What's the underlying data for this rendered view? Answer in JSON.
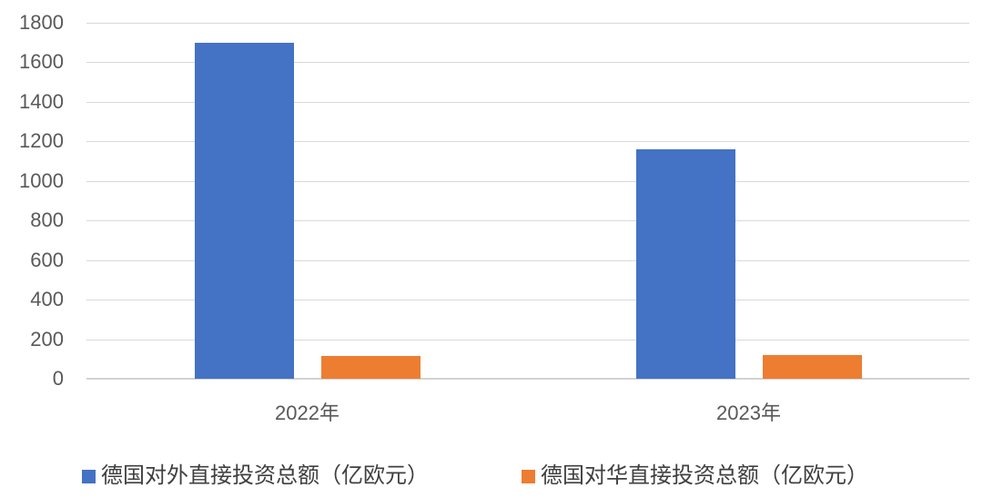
{
  "chart_data": {
    "type": "bar",
    "title": "",
    "xlabel": "",
    "ylabel": "",
    "categories": [
      "2022年",
      "2023年"
    ],
    "series": [
      {
        "name": "德国对外直接投资总额（亿欧元）",
        "color": "#4472C4",
        "values": [
          1700,
          1160
        ]
      },
      {
        "name": "德国对华直接投资总额（亿欧元）",
        "color": "#ED7D31",
        "values": [
          115,
          119
        ]
      }
    ],
    "ylim": [
      0,
      1800
    ],
    "ytick_step": 200,
    "ytick_labels": [
      "0",
      "200",
      "400",
      "600",
      "800",
      "1000",
      "1200",
      "1400",
      "1600",
      "1800"
    ],
    "grid": true,
    "gridline_color": "#d9d9d9",
    "axis_text_color": "#595959",
    "legend_text_color": "#3f3f3f",
    "legend_position": "bottom"
  }
}
